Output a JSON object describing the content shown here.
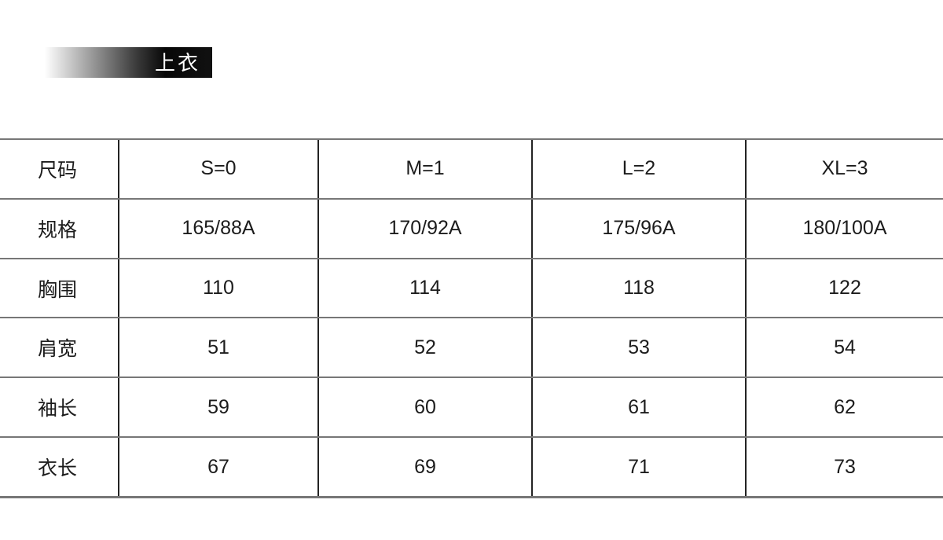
{
  "banner": {
    "title": "上衣"
  },
  "chart_data": {
    "type": "table",
    "title": "上衣",
    "columns": [
      "尺码",
      "S=0",
      "M=1",
      "L=2",
      "XL=3"
    ],
    "rows": [
      [
        "尺码",
        "S=0",
        "M=1",
        "L=2",
        "XL=3"
      ],
      [
        "规格",
        "165/88A",
        "170/92A",
        "175/96A",
        "180/100A"
      ],
      [
        "胸围",
        "110",
        "114",
        "118",
        "122"
      ],
      [
        "肩宽",
        "51",
        "52",
        "53",
        "54"
      ],
      [
        "袖长",
        "59",
        "60",
        "61",
        "62"
      ],
      [
        "衣长",
        "67",
        "69",
        "71",
        "73"
      ]
    ],
    "row_headers": [
      "尺码",
      "规格",
      "胸围",
      "肩宽",
      "袖长",
      "衣长"
    ],
    "layout": {
      "grid": "horizontal-and-vertical-rules",
      "header_position": "first-row-and-first-column"
    }
  },
  "colors": {
    "horizontal_rule": "#777777",
    "vertical_rule": "#232323",
    "banner_gradient_start": "#ffffff",
    "banner_gradient_end": "#0a0a0a",
    "banner_text": "#ffffff",
    "cell_text": "#1c1c1c",
    "background": "#ffffff"
  }
}
